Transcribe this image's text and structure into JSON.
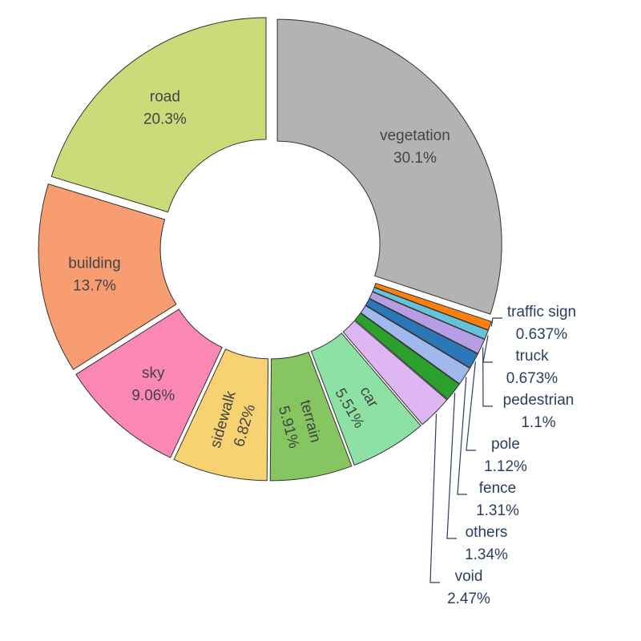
{
  "chart_data": {
    "type": "pie",
    "hole": true,
    "slices": [
      {
        "label": "vegetation",
        "value": 30.1,
        "display": "30.1%",
        "color": "#b3b3b3"
      },
      {
        "label": "traffic sign",
        "value": 0.637,
        "display": "0.637%",
        "color": "#ff7f0e"
      },
      {
        "label": "truck",
        "value": 0.673,
        "display": "0.673%",
        "color": "#66c2d6"
      },
      {
        "label": "pedestrian",
        "value": 1.1,
        "display": "1.1%",
        "color": "#b59ee3"
      },
      {
        "label": "pole",
        "value": 1.12,
        "display": "1.12%",
        "color": "#2b78b8"
      },
      {
        "label": "fence",
        "value": 1.31,
        "display": "1.31%",
        "color": "#a1b8ec"
      },
      {
        "label": "others",
        "value": 1.34,
        "display": "1.34%",
        "color": "#2ca02c"
      },
      {
        "label": "void",
        "value": 2.47,
        "display": "2.47%",
        "color": "#ddb6f2"
      },
      {
        "label": "car",
        "value": 5.51,
        "display": "5.51%",
        "color": "#8ee1a4"
      },
      {
        "label": "terrain",
        "value": 5.91,
        "display": "5.91%",
        "color": "#86c661"
      },
      {
        "label": "sidewalk",
        "value": 6.82,
        "display": "6.82%",
        "color": "#f6d271"
      },
      {
        "label": "sky",
        "value": 9.06,
        "display": "9.06%",
        "color": "#fb88b4"
      },
      {
        "label": "building",
        "value": 13.7,
        "display": "13.7%",
        "color": "#f89c72"
      },
      {
        "label": "road",
        "value": 20.3,
        "display": "20.3%",
        "color": "#cadc79"
      }
    ]
  }
}
